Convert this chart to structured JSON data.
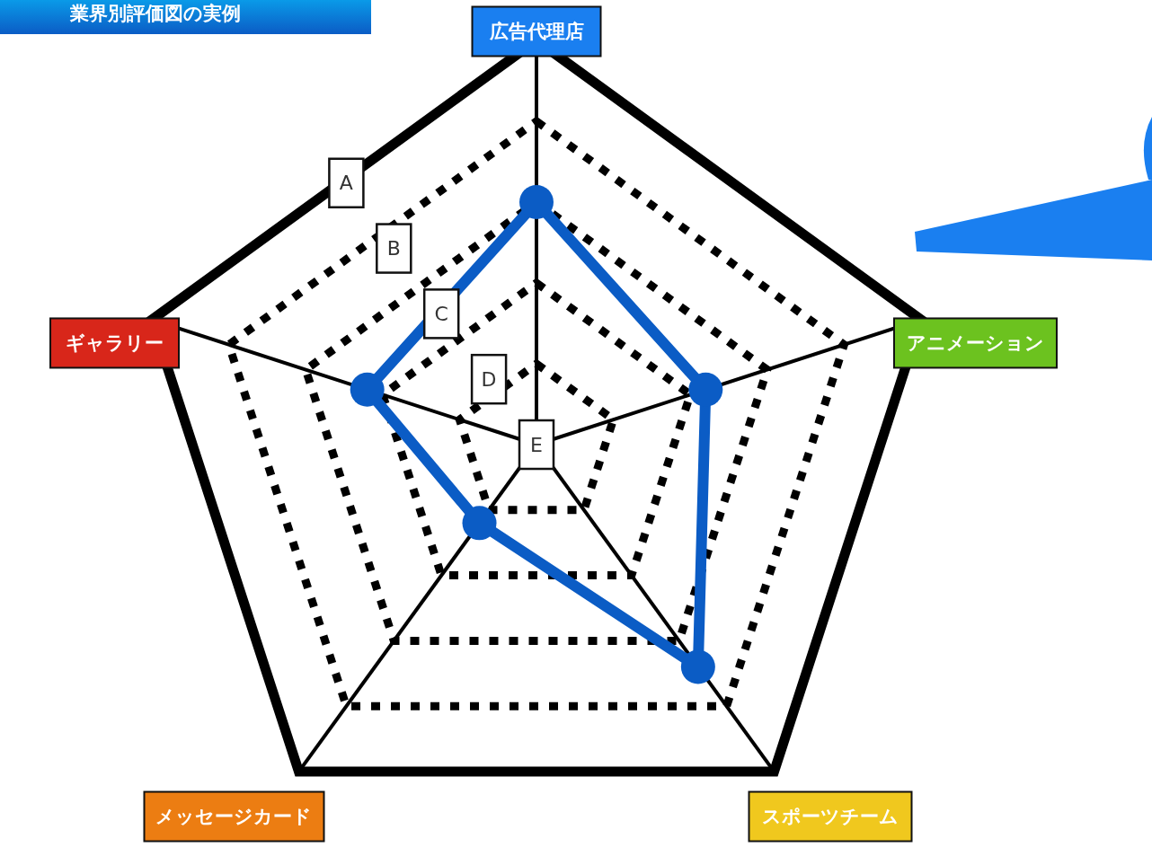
{
  "chart_data": {
    "type": "radar",
    "title": "業界別評価図の実例",
    "categories": [
      "広告代理店",
      "アニメーション",
      "スポーツチーム",
      "メッセージカード",
      "ギャラリー"
    ],
    "series": [
      {
        "color": "#0b5cc5",
        "values": [
          3,
          2.2,
          3.4,
          1.2,
          2.2
        ]
      }
    ],
    "ylim": [
      0,
      5
    ],
    "yticks": [
      {
        "value": 0,
        "label": "E"
      },
      {
        "value": 1,
        "label": "D"
      },
      {
        "value": 2,
        "label": "C"
      },
      {
        "value": 3,
        "label": "B"
      },
      {
        "value": 4,
        "label": "A"
      }
    ],
    "grid": true,
    "marker": "circle",
    "line_style": "solid"
  }
}
